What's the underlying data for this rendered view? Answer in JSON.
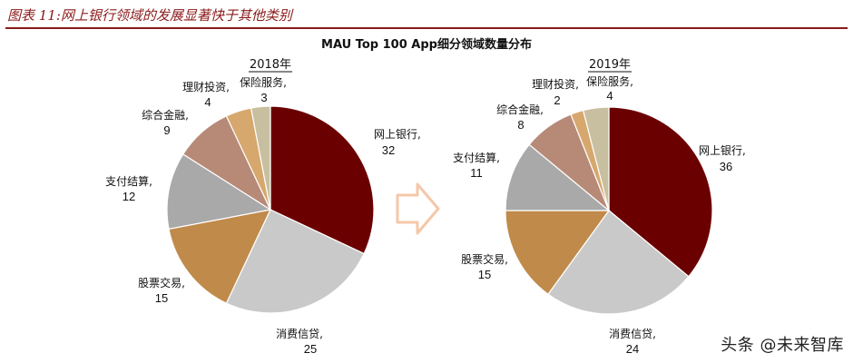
{
  "figure_title": "图表 11:网上银行领域的发展显著快于其他类别",
  "watermark": "头条 @未来智库",
  "colors": {
    "title_red": "#8b1a1a",
    "arrow": "#f5c7a8"
  },
  "chart_data": {
    "type": "pie",
    "title": "MAU Top 100 App细分领域数量分布",
    "categories": [
      "网上银行",
      "消费信贷",
      "股票交易",
      "支付结算",
      "综合金融",
      "理财投资",
      "保险服务"
    ],
    "colors": [
      "#6b0000",
      "#c9c9c9",
      "#c08a4a",
      "#a9a9a9",
      "#b78a78",
      "#d6a86e",
      "#c8bfa0"
    ],
    "charts": [
      {
        "year": "2018年",
        "values": [
          32,
          25,
          15,
          12,
          9,
          4,
          3
        ]
      },
      {
        "year": "2019年",
        "values": [
          36,
          24,
          15,
          11,
          8,
          2,
          4
        ]
      }
    ]
  }
}
